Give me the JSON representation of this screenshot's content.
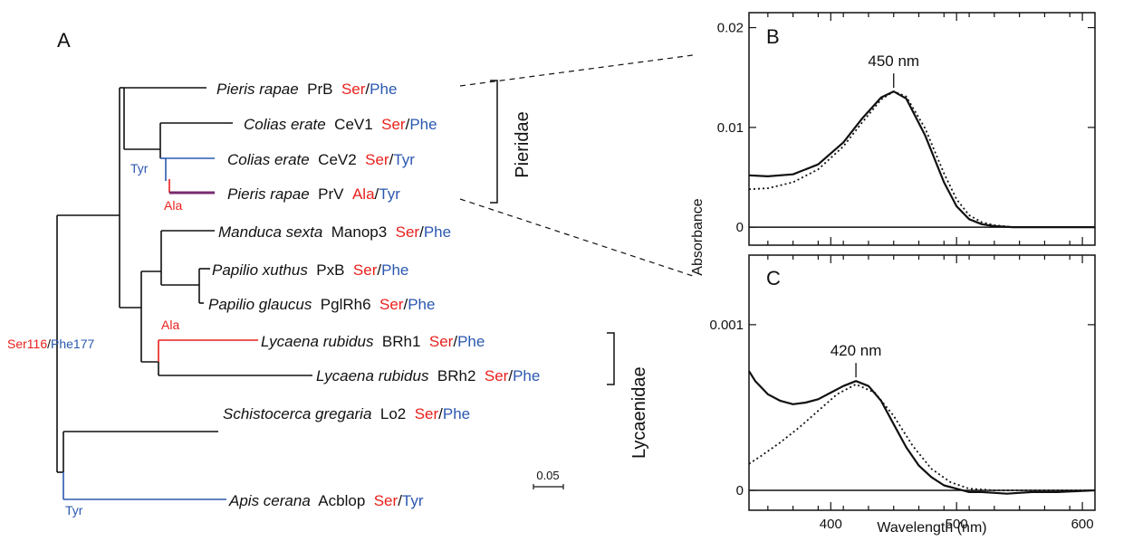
{
  "panels": {
    "a": "A",
    "b": "B",
    "c": "C"
  },
  "tree": {
    "taxa": [
      {
        "genus": "Pieris rapae",
        "gene": "PrB",
        "aa1": "Ser",
        "aa2": "Phe",
        "color": "#111111"
      },
      {
        "genus": "Colias erate",
        "gene": "CeV1",
        "aa1": "Ser",
        "aa2": "Phe",
        "color": "#111111"
      },
      {
        "genus": "Colias erate",
        "gene": "CeV2",
        "aa1": "Ser",
        "aa2": "Tyr",
        "color": "#2b58b0"
      },
      {
        "genus": "Pieris rapae",
        "gene": "PrV",
        "aa1": "Ala",
        "aa2": "Tyr",
        "color": "#7a2a6e"
      },
      {
        "genus": "Manduca sexta",
        "gene": "Manop3",
        "aa1": "Ser",
        "aa2": "Phe",
        "color": "#111111"
      },
      {
        "genus": "Papilio xuthus",
        "gene": "PxB",
        "aa1": "Ser",
        "aa2": "Phe",
        "color": "#111111"
      },
      {
        "genus": "Papilio glaucus",
        "gene": "PglRh6",
        "aa1": "Ser",
        "aa2": "Phe",
        "color": "#111111"
      },
      {
        "genus": "Lycaena rubidus",
        "gene": "BRh1",
        "aa1": "Ser",
        "aa2": "Phe",
        "color": "#e8211c"
      },
      {
        "genus": "Lycaena rubidus",
        "gene": "BRh2",
        "aa1": "Ser",
        "aa2": "Phe",
        "color": "#111111"
      },
      {
        "genus": "Schistocerca gregaria",
        "gene": "Lo2",
        "aa1": "Ser",
        "aa2": "Phe",
        "color": "#111111"
      },
      {
        "genus": "Apis cerana",
        "gene": "Acblop",
        "aa1": "Ser",
        "aa2": "Tyr",
        "color": "#2b58b0"
      }
    ],
    "root_label": {
      "aa1": "Ser116",
      "aa2": "Phe177"
    },
    "mutations": {
      "tyr_colias": "Tyr",
      "ala_prv": "Ala",
      "ala_lycaena": "Ala",
      "tyr_apis": "Tyr"
    },
    "clades": {
      "pieridae": "Pieridae",
      "lycaenidae": "Lycaenidae"
    },
    "scale_bar": "0.05",
    "colors": {
      "ser_ala": "#e8211c",
      "phe_tyr": "#2b58b0",
      "branch": "#111111"
    }
  },
  "chart_data": [
    {
      "type": "line",
      "panel": "B",
      "xlabel": "",
      "ylabel": "Absorbance",
      "xlim": [
        335,
        610
      ],
      "ylim": [
        -0.0018,
        0.0215
      ],
      "yticks": [
        0,
        0.01,
        0.02
      ],
      "ytick_labels": [
        "0",
        "0.01",
        "0.02"
      ],
      "peak_label": "450 nm",
      "peak_x": 450,
      "series": [
        {
          "style": "solid",
          "x": [
            335,
            350,
            370,
            390,
            410,
            425,
            440,
            450,
            460,
            475,
            490,
            500,
            510,
            520,
            530,
            545,
            560,
            580,
            610
          ],
          "y": [
            0.0052,
            0.0051,
            0.0053,
            0.0063,
            0.0085,
            0.0109,
            0.013,
            0.0136,
            0.0129,
            0.0092,
            0.0045,
            0.0021,
            0.0008,
            0.0003,
            0.0001,
            0.0,
            0.0,
            0.0,
            0.0
          ]
        },
        {
          "style": "dotted",
          "x": [
            335,
            350,
            370,
            390,
            410,
            425,
            440,
            450,
            460,
            475,
            490,
            500,
            510,
            520,
            530,
            545,
            560,
            580,
            610
          ],
          "y": [
            0.0038,
            0.0039,
            0.0045,
            0.0058,
            0.0081,
            0.0105,
            0.0128,
            0.0136,
            0.0131,
            0.0099,
            0.0054,
            0.0028,
            0.0012,
            0.0005,
            0.0002,
            0.0,
            0.0,
            0.0,
            0.0
          ]
        }
      ]
    },
    {
      "type": "line",
      "panel": "C",
      "xlabel": "Wavelength (nm)",
      "ylabel": "",
      "xlim": [
        335,
        610
      ],
      "ylim": [
        -0.00012,
        0.00142
      ],
      "yticks": [
        0,
        0.001
      ],
      "ytick_labels": [
        "0",
        "0.001"
      ],
      "xticks": [
        400,
        500,
        600
      ],
      "xtick_labels": [
        "400",
        "500",
        "600"
      ],
      "peak_label": "420 nm",
      "peak_x": 420,
      "series": [
        {
          "style": "solid",
          "x": [
            335,
            340,
            345,
            350,
            360,
            370,
            380,
            390,
            400,
            410,
            420,
            430,
            440,
            450,
            460,
            470,
            480,
            490,
            500,
            510,
            520,
            540,
            560,
            580,
            610
          ],
          "y": [
            0.00072,
            0.00066,
            0.00062,
            0.00058,
            0.00054,
            0.00052,
            0.00053,
            0.00055,
            0.00059,
            0.00063,
            0.00066,
            0.00063,
            0.00054,
            0.0004,
            0.00026,
            0.00015,
            8e-05,
            3e-05,
            1e-05,
            -1e-05,
            -1e-05,
            -2e-05,
            -1e-05,
            -1e-05,
            0.0
          ]
        },
        {
          "style": "dotted",
          "x": [
            335,
            345,
            360,
            375,
            390,
            405,
            420,
            435,
            450,
            465,
            480,
            495,
            510,
            530,
            560,
            610
          ],
          "y": [
            0.00016,
            0.00021,
            0.00029,
            0.00038,
            0.00048,
            0.00058,
            0.00064,
            0.00059,
            0.00045,
            0.00027,
            0.00013,
            5e-05,
            1e-05,
            0.0,
            0.0,
            0.0
          ]
        }
      ]
    }
  ]
}
